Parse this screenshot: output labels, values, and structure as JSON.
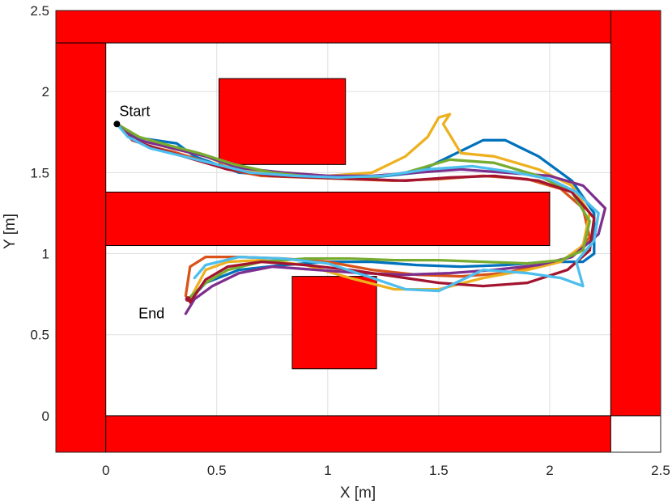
{
  "chart_data": {
    "type": "line",
    "title": "",
    "xlabel": "X [m]",
    "ylabel": "Y [m]",
    "xlim": [
      -0.225,
      2.5
    ],
    "ylim": [
      -0.225,
      2.5
    ],
    "xticks": [
      "0",
      "0.5",
      "1",
      "1.5",
      "2",
      "2.5"
    ],
    "xtick_values": [
      0,
      0.5,
      1,
      1.5,
      2,
      2.5
    ],
    "yticks": [
      "0",
      "0.5",
      "1",
      "1.5",
      "2",
      "2.5"
    ],
    "ytick_values": [
      0,
      0.5,
      1,
      1.5,
      2,
      2.5
    ],
    "grid": true,
    "obstacle_color": "#ff0000",
    "obstacles": [
      {
        "x": [
          -0.225,
          2.5
        ],
        "y": [
          2.3,
          2.5
        ]
      },
      {
        "x": [
          -0.225,
          0.0
        ],
        "y": [
          -0.225,
          2.3
        ]
      },
      {
        "x": [
          0.0,
          2.275
        ],
        "y": [
          -0.225,
          0.0
        ]
      },
      {
        "x": [
          2.275,
          2.5
        ],
        "y": [
          0.0,
          2.5
        ]
      },
      {
        "x": [
          0.0,
          2.0
        ],
        "y": [
          1.05,
          1.38
        ]
      },
      {
        "x": [
          0.51,
          1.08
        ],
        "y": [
          1.55,
          2.08
        ]
      },
      {
        "x": [
          0.84,
          1.22
        ],
        "y": [
          0.29,
          0.86
        ]
      }
    ],
    "annotations": [
      {
        "text": "Start",
        "x": 0.05,
        "y": 1.8
      },
      {
        "text": "End",
        "x": 0.37,
        "y": 0.72
      }
    ],
    "series": [
      {
        "color": "#0072bd",
        "x": [
          0.05,
          0.12,
          0.22,
          0.32,
          0.4,
          0.5,
          0.6,
          0.8,
          1.0,
          1.2,
          1.4,
          1.55,
          1.7,
          1.8,
          1.95,
          2.1,
          2.2,
          2.2,
          2.15,
          2.0,
          1.8,
          1.6,
          1.4,
          1.2,
          1.0,
          0.8,
          0.6,
          0.45,
          0.38
        ],
        "y": [
          1.8,
          1.72,
          1.7,
          1.68,
          1.6,
          1.55,
          1.5,
          1.48,
          1.48,
          1.47,
          1.5,
          1.6,
          1.7,
          1.7,
          1.6,
          1.45,
          1.25,
          1.0,
          0.95,
          0.95,
          0.93,
          0.92,
          0.93,
          0.95,
          0.95,
          0.93,
          0.9,
          0.82,
          0.72
        ]
      },
      {
        "color": "#d95319",
        "x": [
          0.05,
          0.12,
          0.2,
          0.3,
          0.42,
          0.55,
          0.7,
          0.9,
          1.1,
          1.3,
          1.5,
          1.7,
          1.9,
          2.05,
          2.15,
          2.18,
          2.1,
          1.95,
          1.8,
          1.6,
          1.4,
          1.2,
          1.0,
          0.8,
          0.6,
          0.45,
          0.38,
          0.36
        ],
        "y": [
          1.8,
          1.7,
          1.66,
          1.63,
          1.58,
          1.52,
          1.48,
          1.47,
          1.46,
          1.45,
          1.46,
          1.48,
          1.46,
          1.4,
          1.28,
          1.1,
          0.98,
          0.93,
          0.88,
          0.86,
          0.87,
          0.9,
          0.95,
          0.97,
          0.98,
          0.98,
          0.92,
          0.74
        ]
      },
      {
        "color": "#edb120",
        "x": [
          0.05,
          0.15,
          0.3,
          0.45,
          0.6,
          0.8,
          1.0,
          1.2,
          1.35,
          1.45,
          1.5,
          1.55,
          1.52,
          1.6,
          1.75,
          1.95,
          2.1,
          2.18,
          2.15,
          2.05,
          1.9,
          1.7,
          1.5,
          1.3,
          1.1,
          0.9,
          0.7,
          0.55,
          0.45,
          0.38
        ],
        "y": [
          1.8,
          1.7,
          1.65,
          1.6,
          1.52,
          1.5,
          1.48,
          1.5,
          1.6,
          1.72,
          1.84,
          1.86,
          1.8,
          1.62,
          1.6,
          1.52,
          1.42,
          1.25,
          1.05,
          0.95,
          0.9,
          0.85,
          0.78,
          0.78,
          0.85,
          0.93,
          0.96,
          0.95,
          0.9,
          0.72
        ]
      },
      {
        "color": "#7e2f8e",
        "x": [
          0.05,
          0.15,
          0.3,
          0.45,
          0.6,
          0.8,
          1.0,
          1.2,
          1.4,
          1.6,
          1.8,
          2.0,
          2.15,
          2.25,
          2.22,
          2.1,
          1.95,
          1.75,
          1.55,
          1.35,
          1.15,
          0.95,
          0.75,
          0.6,
          0.48,
          0.4,
          0.36
        ],
        "y": [
          1.8,
          1.7,
          1.65,
          1.6,
          1.53,
          1.5,
          1.48,
          1.48,
          1.5,
          1.52,
          1.5,
          1.48,
          1.42,
          1.28,
          1.12,
          0.98,
          0.93,
          0.9,
          0.88,
          0.87,
          0.88,
          0.9,
          0.92,
          0.88,
          0.8,
          0.72,
          0.63
        ]
      },
      {
        "color": "#77ac30",
        "x": [
          0.05,
          0.15,
          0.28,
          0.42,
          0.58,
          0.75,
          0.95,
          1.15,
          1.35,
          1.55,
          1.75,
          1.95,
          2.1,
          2.18,
          2.15,
          2.05,
          1.9,
          1.7,
          1.5,
          1.3,
          1.1,
          0.9,
          0.7,
          0.55,
          0.45,
          0.37
        ],
        "y": [
          1.8,
          1.72,
          1.67,
          1.62,
          1.55,
          1.5,
          1.47,
          1.46,
          1.5,
          1.58,
          1.56,
          1.48,
          1.38,
          1.2,
          1.02,
          0.96,
          0.94,
          0.95,
          0.96,
          0.96,
          0.97,
          0.97,
          0.95,
          0.9,
          0.82,
          0.72
        ]
      },
      {
        "color": "#a2142f",
        "x": [
          0.05,
          0.12,
          0.25,
          0.4,
          0.55,
          0.75,
          0.95,
          1.15,
          1.35,
          1.55,
          1.75,
          1.95,
          2.1,
          2.2,
          2.18,
          2.08,
          1.9,
          1.7,
          1.5,
          1.3,
          1.1,
          0.9,
          0.7,
          0.55,
          0.45,
          0.38
        ],
        "y": [
          1.8,
          1.7,
          1.64,
          1.58,
          1.52,
          1.48,
          1.47,
          1.46,
          1.45,
          1.47,
          1.48,
          1.45,
          1.38,
          1.22,
          1.02,
          0.9,
          0.82,
          0.8,
          0.82,
          0.86,
          0.9,
          0.93,
          0.95,
          0.92,
          0.84,
          0.7
        ]
      },
      {
        "color": "#4dbeee",
        "x": [
          0.05,
          0.1,
          0.2,
          0.35,
          0.5,
          0.65,
          0.85,
          1.05,
          1.25,
          1.45,
          1.65,
          1.85,
          2.0,
          2.12,
          2.22,
          2.2,
          2.12,
          2.15,
          2.05,
          1.9,
          1.7,
          1.5,
          1.35,
          1.2,
          1.0,
          0.8,
          0.6,
          0.45,
          0.4
        ],
        "y": [
          1.8,
          1.72,
          1.65,
          1.6,
          1.55,
          1.5,
          1.48,
          1.47,
          1.48,
          1.52,
          1.54,
          1.5,
          1.46,
          1.38,
          1.25,
          1.08,
          0.95,
          0.8,
          0.85,
          0.88,
          0.9,
          0.77,
          0.78,
          0.85,
          0.94,
          0.97,
          0.98,
          0.93,
          0.85
        ]
      }
    ]
  }
}
